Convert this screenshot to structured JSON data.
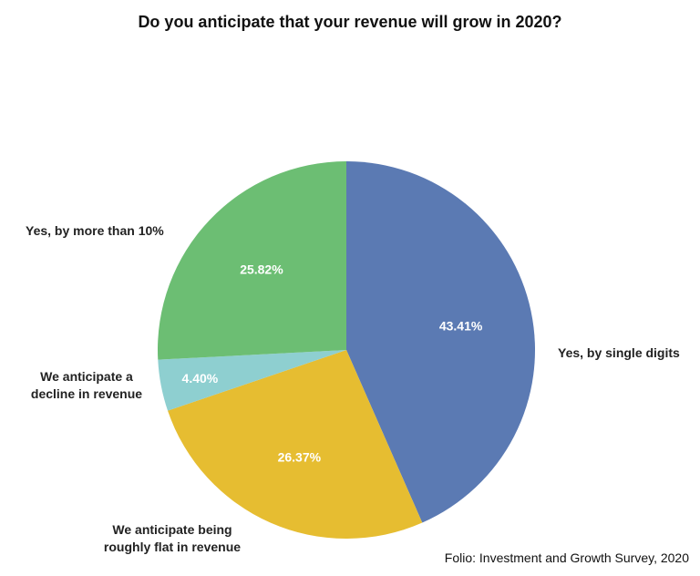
{
  "chart_data": {
    "type": "pie",
    "title": "Do you anticipate that your revenue will grow in 2020?",
    "source": "Folio: Investment and Growth Survey, 2020",
    "slices": [
      {
        "label": "Yes, by single digits",
        "value": 43.41,
        "value_label": "43.41%",
        "color": "#5b7ab3"
      },
      {
        "label": "We anticipate being roughly flat in revenue",
        "value": 26.37,
        "value_label": "26.37%",
        "color": "#e6bd31"
      },
      {
        "label": "We anticipate a decline in revenue",
        "value": 4.4,
        "value_label": "4.40%",
        "color": "#8ecfd0"
      },
      {
        "label": "Yes, by more than 10%",
        "value": 25.82,
        "value_label": "25.82%",
        "color": "#6cbe73"
      }
    ],
    "start": "12 o'clock",
    "direction": "clockwise"
  }
}
